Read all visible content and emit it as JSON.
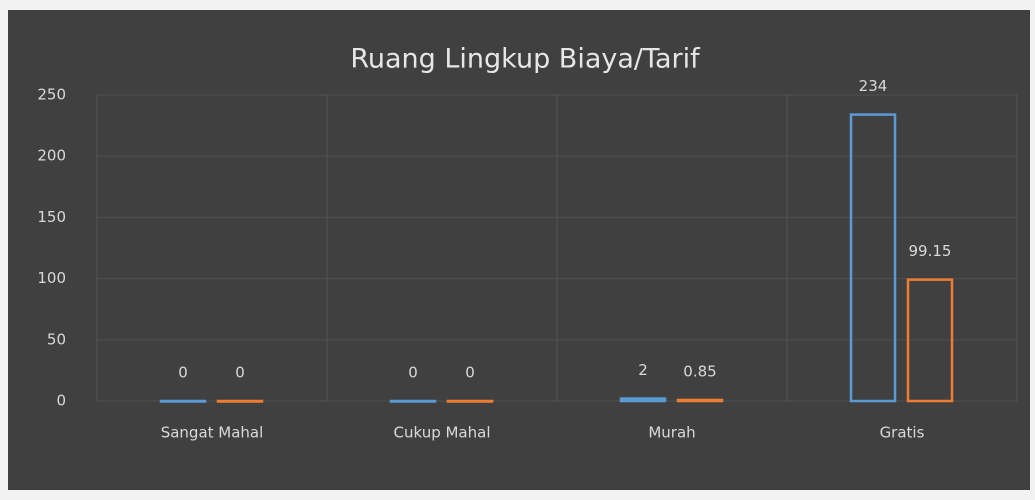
{
  "chart_data": {
    "type": "bar",
    "title": "Ruang Lingkup Biaya/Tarif",
    "categories": [
      "Sangat Mahal",
      "Cukup Mahal",
      "Murah",
      "Gratis"
    ],
    "series": [
      {
        "color": "#5b9bd5",
        "values": [
          0,
          0,
          2,
          234
        ]
      },
      {
        "color": "#ed7d31",
        "values": [
          0,
          0,
          0.85,
          99.15
        ]
      }
    ],
    "ylim": [
      0,
      250
    ],
    "yticks": [
      0,
      50,
      100,
      150,
      200,
      250
    ],
    "grid": true
  }
}
